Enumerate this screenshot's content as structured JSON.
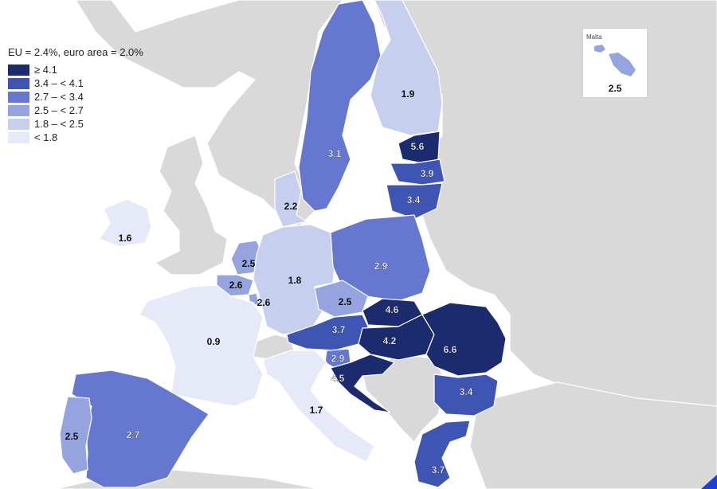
{
  "legend": {
    "title": "EU = 2.4%, euro area = 2.0%",
    "classes": [
      {
        "label": "≥ 4.1",
        "color": "#1c2a6e"
      },
      {
        "label": "3.4 – < 4.1",
        "color": "#3e55b4"
      },
      {
        "label": "2.7 – < 3.4",
        "color": "#6677cf"
      },
      {
        "label": "2.5 – < 2.7",
        "color": "#95a3df"
      },
      {
        "label": "1.8 – < 2.5",
        "color": "#c7cfee"
      },
      {
        "label": "< 1.8",
        "color": "#e6e9f7"
      }
    ]
  },
  "colors": {
    "non_eu_land": "#d9d9d9",
    "sea": "#ffffff",
    "label_dark": "#111111",
    "label_light": "#ffffff"
  },
  "countries": [
    {
      "id": "finland",
      "value": "1.9",
      "class": 4
    },
    {
      "id": "sweden",
      "value": "3.1",
      "class": 2
    },
    {
      "id": "estonia",
      "value": "5.6",
      "class": 0
    },
    {
      "id": "latvia",
      "value": "3.9",
      "class": 1
    },
    {
      "id": "lithuania",
      "value": "3.4",
      "class": 1
    },
    {
      "id": "denmark",
      "value": "2.2",
      "class": 4
    },
    {
      "id": "ireland",
      "value": "1.6",
      "class": 5
    },
    {
      "id": "netherlands",
      "value": "2.5",
      "class": 3
    },
    {
      "id": "belgium",
      "value": "2.6",
      "class": 3
    },
    {
      "id": "luxembourg",
      "value": "2.6",
      "class": 3
    },
    {
      "id": "germany",
      "value": "1.8",
      "class": 4
    },
    {
      "id": "poland",
      "value": "2.9",
      "class": 2
    },
    {
      "id": "czechia",
      "value": "2.5",
      "class": 3
    },
    {
      "id": "slovakia",
      "value": "4.6",
      "class": 0
    },
    {
      "id": "austria",
      "value": "3.7",
      "class": 1
    },
    {
      "id": "hungary",
      "value": "4.2",
      "class": 0
    },
    {
      "id": "romania",
      "value": "6.6",
      "class": 0
    },
    {
      "id": "slovenia",
      "value": "2.9",
      "class": 2
    },
    {
      "id": "croatia",
      "value": "4.5",
      "class": 0
    },
    {
      "id": "france",
      "value": "0.9",
      "class": 5
    },
    {
      "id": "italy",
      "value": "1.7",
      "class": 5
    },
    {
      "id": "bulgaria",
      "value": "3.4",
      "class": 1
    },
    {
      "id": "spain",
      "value": "2.7",
      "class": 2
    },
    {
      "id": "portugal",
      "value": "2.5",
      "class": 3
    },
    {
      "id": "greece",
      "value": "3.7",
      "class": 1
    }
  ],
  "malta": {
    "name": "Malta",
    "value": "2.5",
    "class": 3
  }
}
